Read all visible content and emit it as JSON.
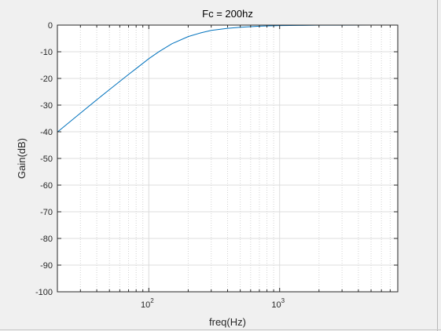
{
  "chart_data": {
    "type": "line",
    "title": "Fc = 200hz",
    "xlabel": "freq(Hz)",
    "ylabel": "Gain(dB)",
    "x_scale": "log",
    "xlim": [
      20,
      8000
    ],
    "ylim": [
      -100,
      0
    ],
    "y_ticks": [
      "0",
      "-10",
      "-20",
      "-30",
      "-40",
      "-50",
      "-60",
      "-70",
      "-80",
      "-90",
      "-100"
    ],
    "x_ticks": [
      {
        "base": "10",
        "exp": "2",
        "value": 100
      },
      {
        "base": "10",
        "exp": "3",
        "value": 1000
      }
    ],
    "grid": true,
    "line_color": "#0072bd",
    "series": [
      {
        "x": [
          20,
          30,
          40,
          50,
          60,
          70,
          80,
          100,
          120,
          150,
          200,
          250,
          300,
          400,
          500,
          700,
          1000,
          1500,
          2000,
          3000,
          5000,
          8000
        ],
        "values": [
          -40.1,
          -33.0,
          -28.0,
          -24.2,
          -21.1,
          -18.5,
          -16.3,
          -12.6,
          -9.9,
          -7.0,
          -4.3,
          -2.9,
          -2.0,
          -1.2,
          -0.8,
          -0.4,
          -0.2,
          -0.1,
          -0.05,
          -0.02,
          -0.01,
          0
        ]
      }
    ]
  }
}
